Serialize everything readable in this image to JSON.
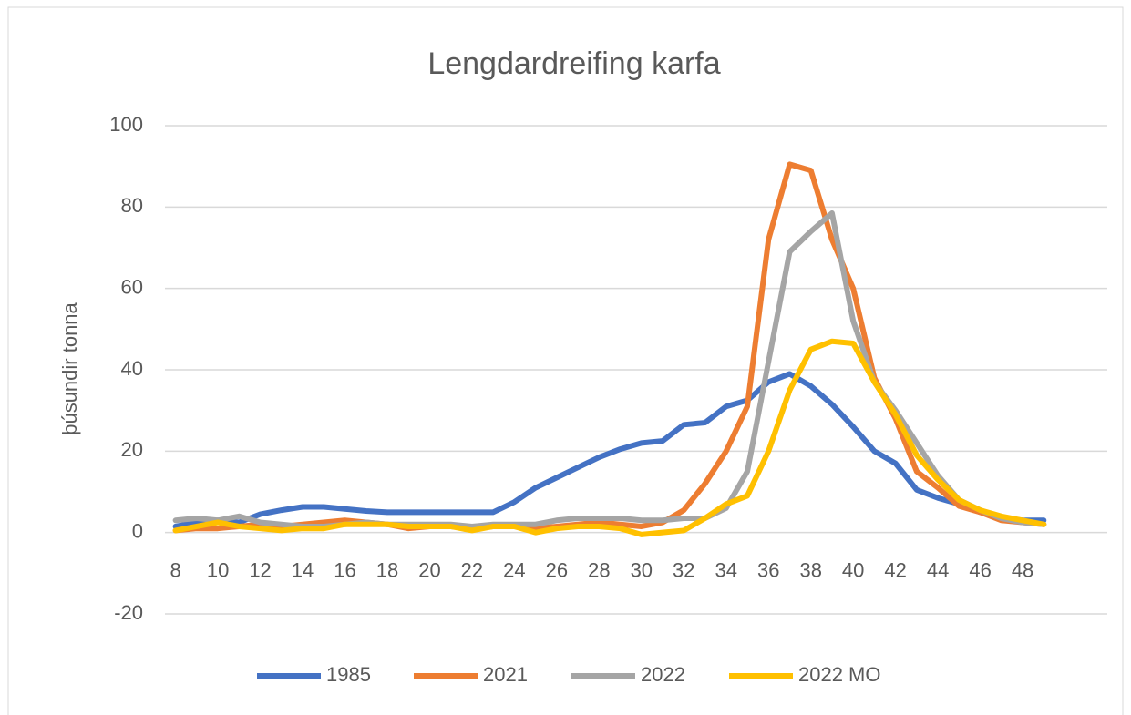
{
  "chart_data": {
    "type": "line",
    "title": "Lengdardreifing karfa",
    "y_label": "þúsundir tonna",
    "x": [
      8,
      9,
      10,
      11,
      12,
      13,
      14,
      15,
      16,
      17,
      18,
      19,
      20,
      21,
      22,
      23,
      24,
      25,
      26,
      27,
      28,
      29,
      30,
      31,
      32,
      33,
      34,
      35,
      36,
      37,
      38,
      39,
      40,
      41,
      42,
      43,
      44,
      45,
      46,
      47,
      48,
      49
    ],
    "xlim": [
      7.5,
      52
    ],
    "xticks": [
      8,
      10,
      12,
      14,
      16,
      18,
      20,
      22,
      24,
      26,
      28,
      30,
      32,
      34,
      36,
      38,
      40,
      42,
      44,
      46,
      48
    ],
    "ylim": [
      -20,
      100
    ],
    "yticks": [
      -20,
      0,
      20,
      40,
      60,
      80,
      100
    ],
    "grid": true,
    "legend": "bottom",
    "series": [
      {
        "name": "1985",
        "color": "#4472c4",
        "values": [
          1.5,
          2.5,
          3,
          2.5,
          4.5,
          5.5,
          6.3,
          6.3,
          5.8,
          5.3,
          5,
          5,
          5,
          5,
          5,
          5,
          7.5,
          11,
          13.5,
          16,
          18.5,
          20.5,
          22,
          22.5,
          26.5,
          27,
          31,
          32.5,
          37,
          39,
          36,
          31.5,
          26,
          20,
          17,
          10.5,
          8.5,
          7,
          5,
          3.5,
          3,
          3
        ]
      },
      {
        "name": "2021",
        "color": "#ed7d31",
        "values": [
          0.5,
          1,
          1,
          1.5,
          2,
          1.5,
          2,
          2.5,
          3,
          2.5,
          2,
          1,
          1.5,
          1.5,
          1,
          1.5,
          1.5,
          1,
          1.5,
          2,
          2.5,
          2,
          1.5,
          2.5,
          5.5,
          12,
          20,
          31,
          72,
          90.5,
          89,
          72,
          60,
          38,
          28,
          15,
          11,
          6.5,
          5,
          3,
          2.5,
          2
        ]
      },
      {
        "name": "2022",
        "color": "#a5a5a5",
        "values": [
          3,
          3.5,
          3,
          4,
          2.5,
          2,
          1.5,
          1.5,
          2,
          2.5,
          2,
          2,
          2,
          2,
          1.5,
          2,
          2,
          2,
          3,
          3.5,
          3.5,
          3.5,
          3,
          3,
          3.5,
          3.5,
          6,
          15,
          42,
          69,
          74,
          78.5,
          52,
          37,
          30,
          22,
          14,
          8,
          5.5,
          3.5,
          2.5,
          2
        ]
      },
      {
        "name": "2022 MO",
        "color": "#ffc000",
        "values": [
          0.5,
          1.5,
          2.5,
          1.5,
          1,
          0.5,
          1,
          1,
          2,
          2,
          2,
          1.5,
          1.5,
          1.5,
          0.5,
          1.5,
          1.5,
          0,
          1,
          1.5,
          1.5,
          1,
          -0.5,
          0,
          0.5,
          3.5,
          7,
          9,
          20,
          35,
          45,
          47,
          46.5,
          37,
          29,
          19,
          13,
          8,
          5.5,
          4,
          3,
          2
        ]
      }
    ]
  }
}
